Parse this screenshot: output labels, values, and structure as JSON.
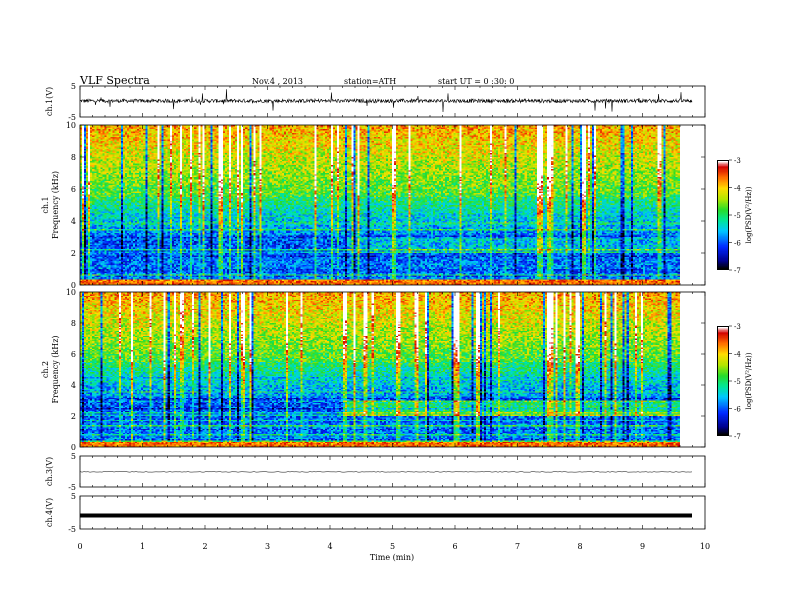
{
  "header": {
    "title": "VLF  Spectra",
    "date": "Nov.4  , 2013",
    "station": "station=ATH",
    "start": "start  UT  =   0 :30: 0"
  },
  "chart_data": [
    {
      "type": "line",
      "ylabel": "ch.1(V)",
      "ylim": [
        -5,
        5
      ],
      "yticks": [
        "5",
        "-5"
      ],
      "description_of_signal": "noisy waveform near +0.3 V with spiky bursts",
      "color": "#000000"
    },
    {
      "type": "heatmap",
      "ylabel": "ch.1",
      "ylabel2": "Frequency  (kHz)",
      "xlim": [
        0,
        10
      ],
      "ylim": [
        0,
        10
      ],
      "yticks": [
        "0",
        "2",
        "4",
        "6",
        "8",
        "10"
      ],
      "colorbar": {
        "label": "log(PSD(V²/Hz))",
        "ticks": [
          "-3",
          "-4",
          "-5",
          "-6",
          "-7"
        ],
        "range": [
          -7,
          -3
        ]
      }
    },
    {
      "type": "heatmap",
      "ylabel": "ch.2",
      "ylabel2": "Frequency  (kHz)",
      "xlim": [
        0,
        10
      ],
      "ylim": [
        0,
        10
      ],
      "yticks": [
        "0",
        "2",
        "4",
        "6",
        "8",
        "10"
      ],
      "colorbar": {
        "label": "log(PSD(V²/Hz))",
        "ticks": [
          "-3",
          "-4",
          "-5",
          "-6",
          "-7"
        ],
        "range": [
          -7,
          -3
        ]
      }
    },
    {
      "type": "line",
      "ylabel": "ch.3(V)",
      "ylim": [
        -5,
        5
      ],
      "yticks": [
        "5",
        "-5"
      ],
      "level": 0.2
    },
    {
      "type": "line",
      "ylabel": "ch.4(V)",
      "ylim": [
        -5,
        5
      ],
      "yticks": [
        "5",
        "-5"
      ],
      "level": 0.0,
      "xlabel": "Time  (min)",
      "xlim": [
        0,
        10
      ],
      "xticks": [
        "0",
        "1",
        "2",
        "3",
        "4",
        "5",
        "6",
        "7",
        "8",
        "9",
        "10"
      ]
    }
  ]
}
